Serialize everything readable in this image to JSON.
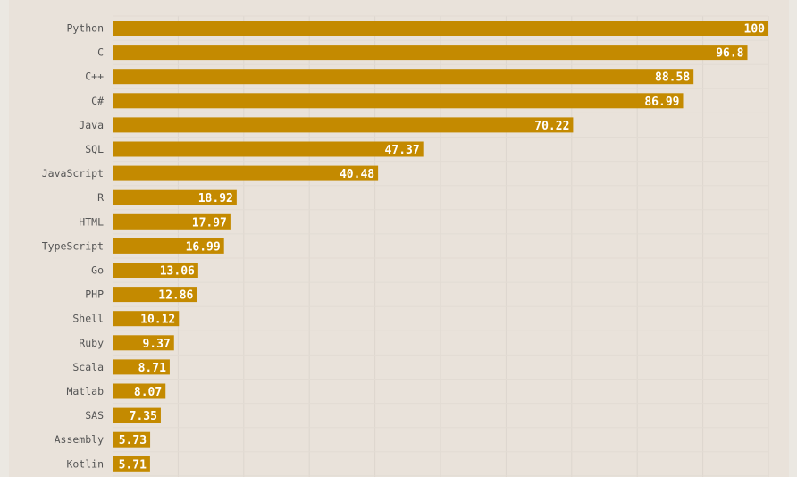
{
  "chart_data": {
    "type": "bar",
    "orientation": "horizontal",
    "categories": [
      "Python",
      "C",
      "C++",
      "C#",
      "Java",
      "SQL",
      "JavaScript",
      "R",
      "HTML",
      "TypeScript",
      "Go",
      "PHP",
      "Shell",
      "Ruby",
      "Scala",
      "Matlab",
      "SAS",
      "Assembly",
      "Kotlin"
    ],
    "values": [
      100,
      96.8,
      88.58,
      86.99,
      70.22,
      47.37,
      40.48,
      18.92,
      17.97,
      16.99,
      13.06,
      12.86,
      10.12,
      9.37,
      8.71,
      8.07,
      7.35,
      5.73,
      5.71
    ],
    "value_labels": [
      "100",
      "96.8",
      "88.58",
      "86.99",
      "70.22",
      "47.37",
      "40.48",
      "18.92",
      "17.97",
      "16.99",
      "13.06",
      "12.86",
      "10.12",
      "9.37",
      "8.71",
      "8.07",
      "7.35",
      "5.73",
      "5.71"
    ],
    "xlim": [
      0,
      100
    ],
    "grid": true,
    "bar_color": "#c48a00",
    "background": "#e9e2da"
  }
}
